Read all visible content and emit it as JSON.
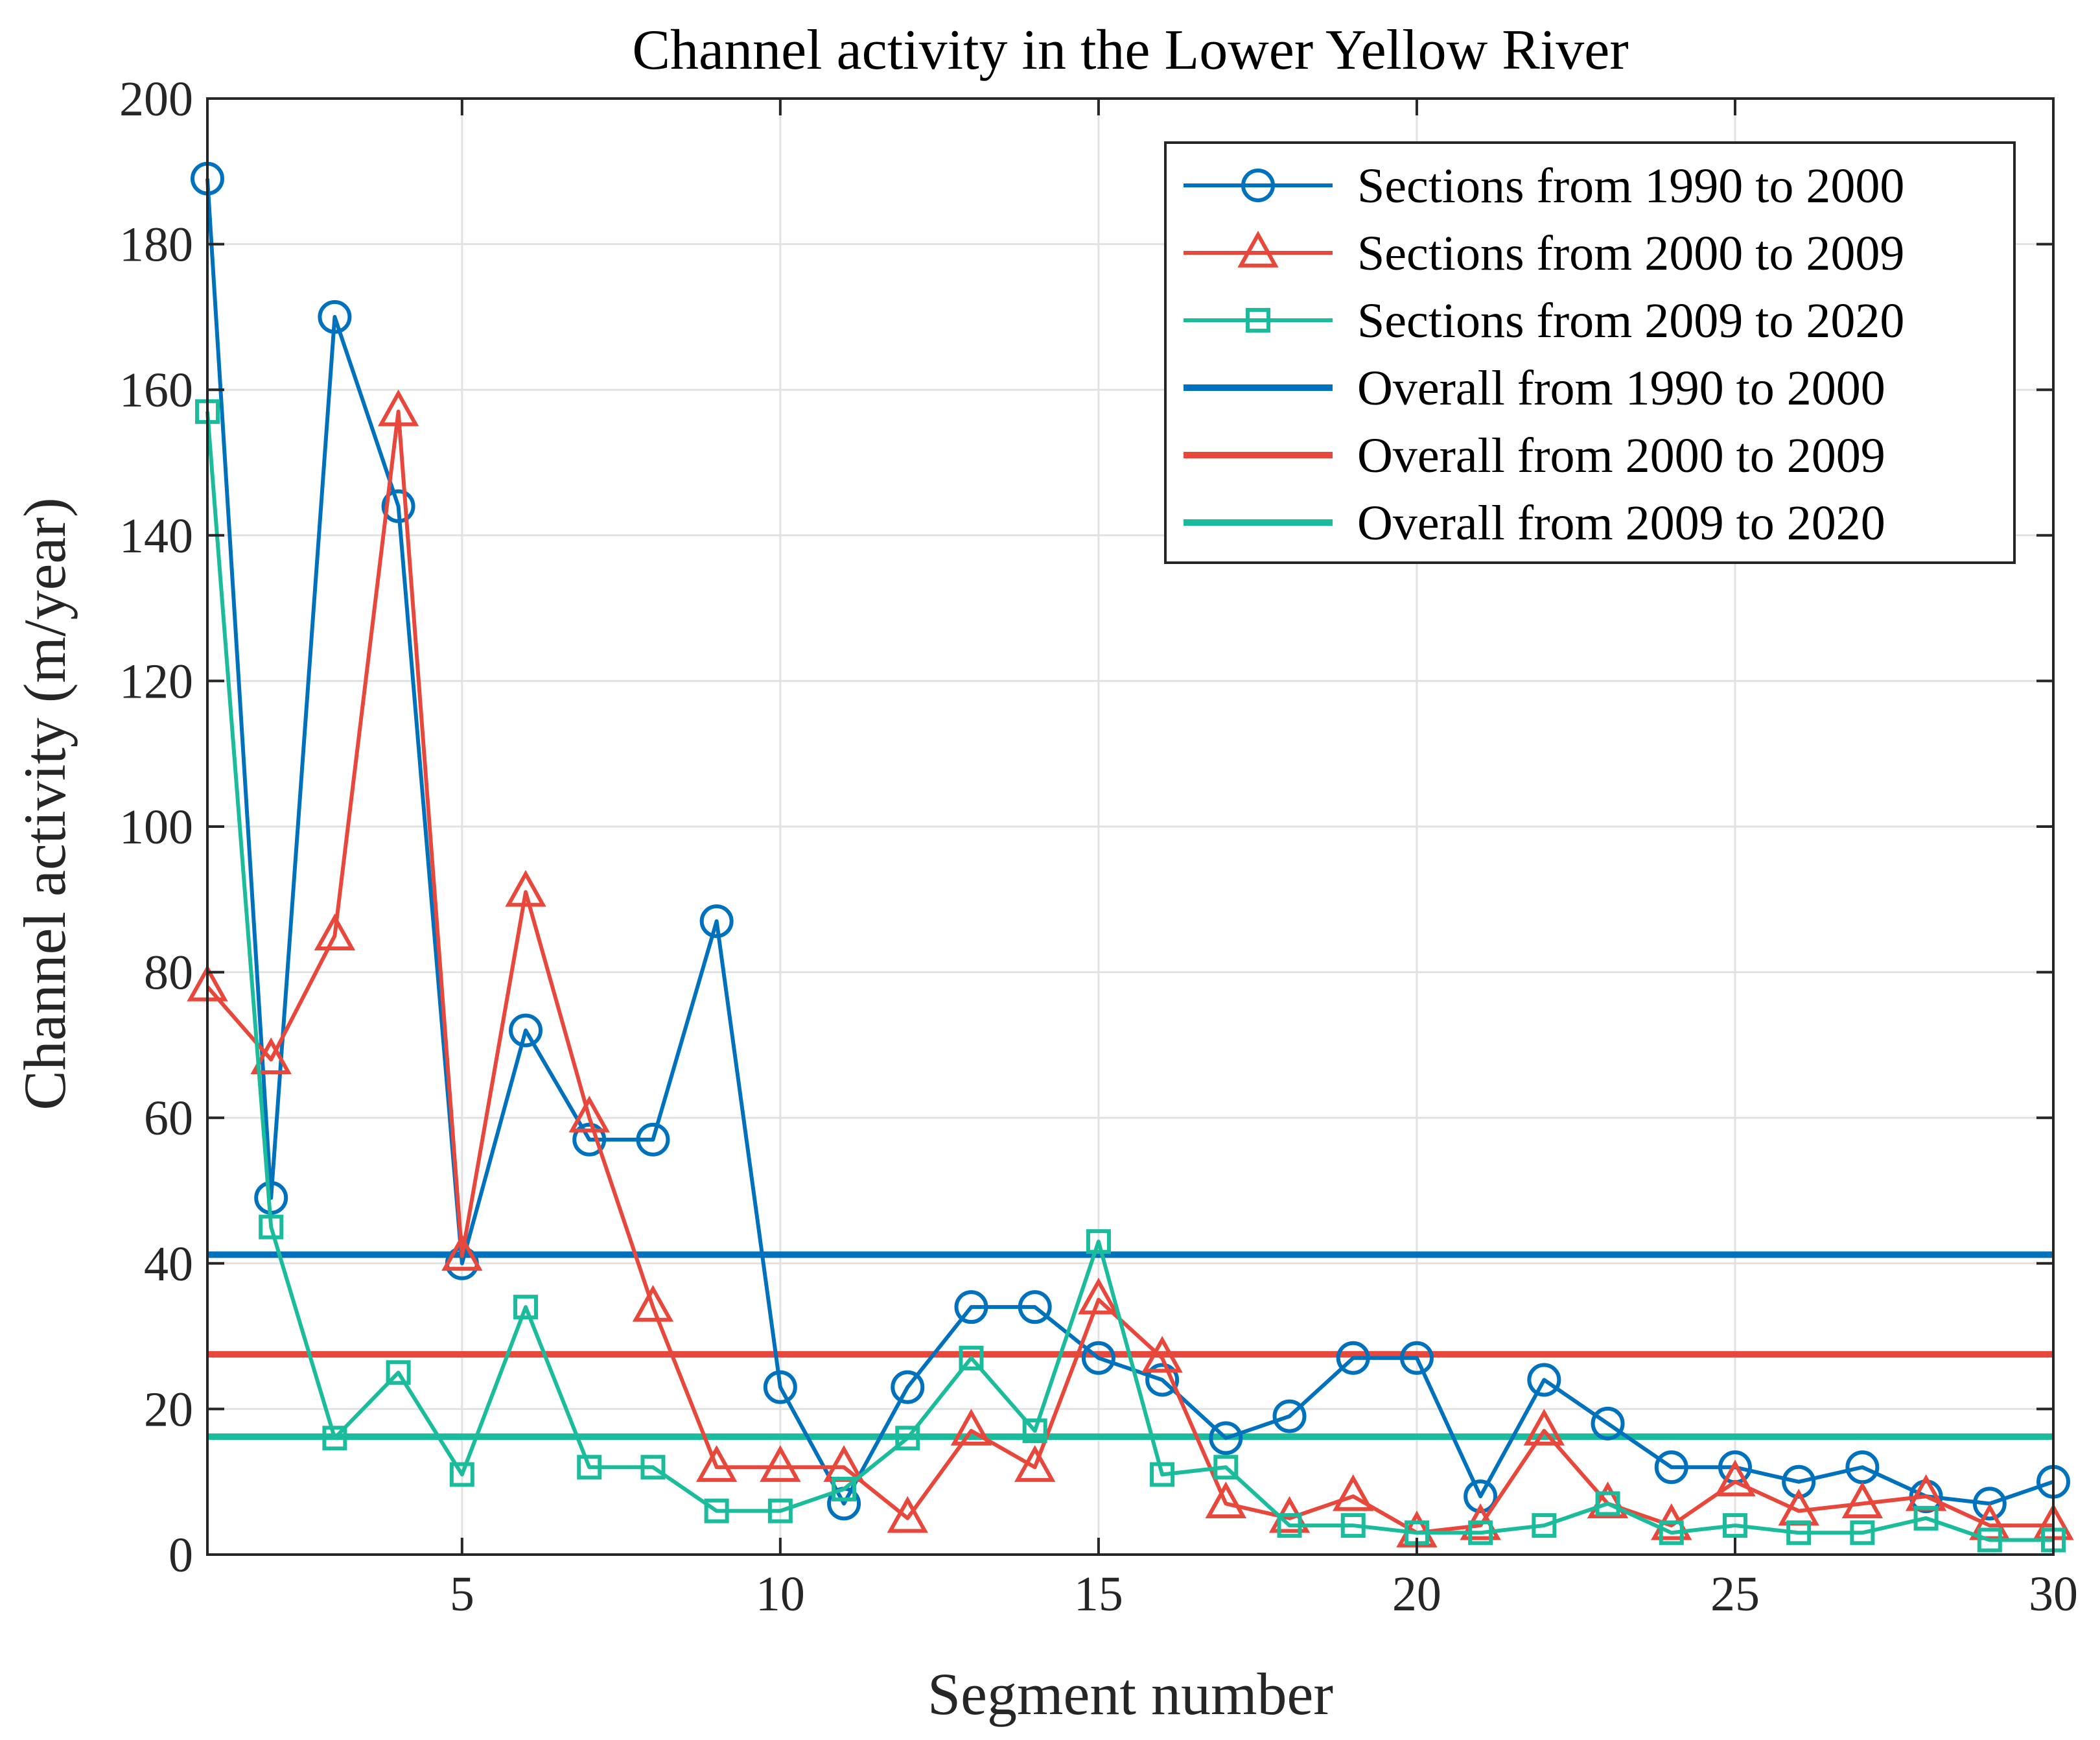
{
  "chart_data": {
    "type": "line",
    "title": "Channel activity in the Lower Yellow River",
    "xlabel": "Segment number",
    "ylabel": "Channel activity (m/year)",
    "xlim": [
      1,
      30
    ],
    "ylim": [
      0,
      200
    ],
    "xticks": [
      5,
      10,
      15,
      20,
      25,
      30
    ],
    "yticks": [
      0,
      20,
      40,
      60,
      80,
      100,
      120,
      140,
      160,
      180,
      200
    ],
    "grid": true,
    "legend_position": "top-right",
    "x": [
      1,
      2,
      3,
      4,
      5,
      6,
      7,
      8,
      9,
      10,
      11,
      12,
      13,
      14,
      15,
      16,
      17,
      18,
      19,
      20,
      21,
      22,
      23,
      24,
      25,
      26,
      27,
      28,
      29,
      30
    ],
    "series": [
      {
        "name": "Sections from 1990 to 2000",
        "color": "#0072BD",
        "marker": "circle",
        "values": [
          189,
          49,
          170,
          144,
          40,
          72,
          57,
          57,
          87,
          23,
          7,
          23,
          34,
          34,
          27,
          24,
          16,
          19,
          27,
          27,
          8,
          24,
          18,
          12,
          12,
          10,
          12,
          8,
          7,
          10
        ]
      },
      {
        "name": "Sections from 2000 to 2009",
        "color": "#E8473C",
        "marker": "triangle",
        "values": [
          78,
          68,
          85,
          157,
          41,
          91,
          60,
          34,
          12,
          12,
          12,
          5,
          17,
          12,
          35,
          27,
          7,
          5,
          8,
          3,
          4,
          17,
          7,
          4,
          10,
          6,
          7,
          8,
          4,
          4
        ]
      },
      {
        "name": "Sections from 2009 to 2020",
        "color": "#1ABC9C",
        "marker": "square",
        "values": [
          157,
          45,
          16,
          25,
          11,
          34,
          12,
          12,
          6,
          6,
          9,
          16,
          27,
          17,
          43,
          11,
          12,
          4,
          4,
          3,
          3,
          4,
          7,
          3,
          4,
          3,
          3,
          5,
          2,
          2
        ]
      }
    ],
    "reference_lines": [
      {
        "name": "Overall from 1990 to 2000",
        "color": "#0072BD",
        "value": 41.2
      },
      {
        "name": "Overall from 2000 to 2009",
        "color": "#E8473C",
        "value": 27.5
      },
      {
        "name": "Overall from 2009 to 2020",
        "color": "#1ABC9C",
        "value": 16.2
      }
    ]
  }
}
